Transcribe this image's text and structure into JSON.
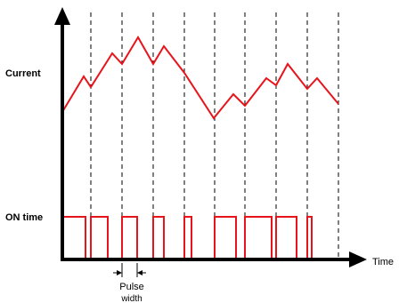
{
  "labels": {
    "current": "Current",
    "on_time": "ON time",
    "time": "Time",
    "pulse_line1": "Pulse",
    "pulse_line2": "width"
  },
  "colors": {
    "waveform": "#e8141b",
    "axis": "#000000",
    "grid": "#000000",
    "background": "#ffffff"
  }
}
